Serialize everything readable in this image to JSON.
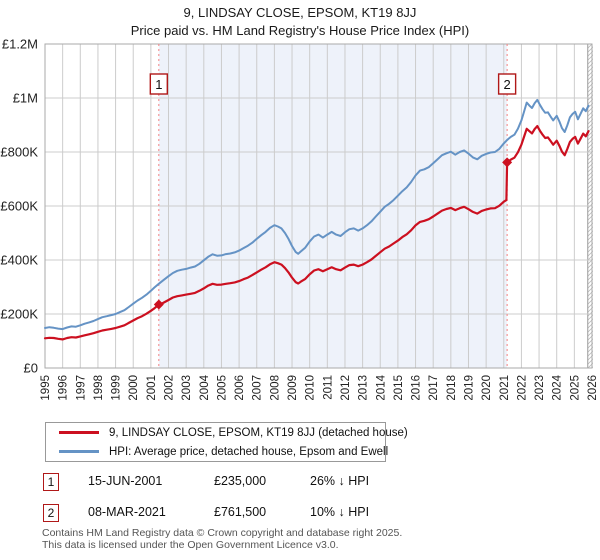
{
  "header": {
    "title": "9, LINDSAY CLOSE, EPSOM, KT19 8JJ",
    "subtitle": "Price paid vs. HM Land Registry's House Price Index (HPI)"
  },
  "colors": {
    "price_line": "#cc1020",
    "hpi_line": "#6593c5",
    "shade": "#eef2fa",
    "marker_dashed": "#f38080",
    "marker_box_border": "#b01818",
    "grid": "#cccccc",
    "plot_border": "#aaaaaa",
    "hatch": "#bbbbbb",
    "axis_text": "#222222"
  },
  "chart_data": {
    "type": "line",
    "title": "9, LINDSAY CLOSE, EPSOM, KT19 8JJ — Price paid vs. HPI",
    "x_axis": {
      "start_year": 1995,
      "end_year": 2026,
      "tick_labels": [
        "1995",
        "1996",
        "1997",
        "1998",
        "1999",
        "2000",
        "2001",
        "2002",
        "2003",
        "2004",
        "2005",
        "2006",
        "2007",
        "2008",
        "2009",
        "2010",
        "2011",
        "2012",
        "2013",
        "2014",
        "2015",
        "2016",
        "2017",
        "2018",
        "2019",
        "2020",
        "2021",
        "2022",
        "2023",
        "2024",
        "2025",
        "2026"
      ]
    },
    "y_axis": {
      "min": 0,
      "max": 1200000,
      "tick_values_k": [
        0,
        200,
        400,
        600,
        800,
        1000,
        1200
      ],
      "tick_labels": [
        "£0",
        "£200K",
        "£400K",
        "£600K",
        "£800K",
        "£1M",
        "£1.2M"
      ]
    },
    "shaded_region": {
      "from_year": 2001.45,
      "to_year": 2021.19
    },
    "hatch_region": {
      "from_year": 2025.76,
      "to_year": 2026.35
    },
    "legend_position": "bottom",
    "grid": true,
    "series": [
      {
        "name": "price_paid_indexed",
        "color_key": "price_line",
        "width": 2.2,
        "points": [
          [
            1995.0,
            110
          ],
          [
            1995.25,
            112
          ],
          [
            1995.5,
            111
          ],
          [
            1995.75,
            108
          ],
          [
            1996.0,
            106
          ],
          [
            1996.25,
            111
          ],
          [
            1996.5,
            114
          ],
          [
            1996.75,
            113
          ],
          [
            1997.0,
            117
          ],
          [
            1997.25,
            121
          ],
          [
            1997.5,
            125
          ],
          [
            1997.75,
            129
          ],
          [
            1998.0,
            134
          ],
          [
            1998.25,
            139
          ],
          [
            1998.5,
            142
          ],
          [
            1998.75,
            145
          ],
          [
            1999.0,
            148
          ],
          [
            1999.25,
            153
          ],
          [
            1999.5,
            158
          ],
          [
            1999.75,
            167
          ],
          [
            2000.0,
            176
          ],
          [
            2000.25,
            185
          ],
          [
            2000.5,
            192
          ],
          [
            2000.75,
            201
          ],
          [
            2001.0,
            212
          ],
          [
            2001.2,
            221
          ],
          [
            2001.45,
            235
          ],
          [
            2001.7,
            241
          ],
          [
            2002.0,
            252
          ],
          [
            2002.25,
            261
          ],
          [
            2002.5,
            266
          ],
          [
            2002.75,
            269
          ],
          [
            2003.0,
            272
          ],
          [
            2003.25,
            275
          ],
          [
            2003.5,
            278
          ],
          [
            2003.75,
            286
          ],
          [
            2004.0,
            295
          ],
          [
            2004.25,
            305
          ],
          [
            2004.5,
            312
          ],
          [
            2004.75,
            308
          ],
          [
            2005.0,
            309
          ],
          [
            2005.25,
            312
          ],
          [
            2005.5,
            314
          ],
          [
            2005.75,
            317
          ],
          [
            2006.0,
            322
          ],
          [
            2006.25,
            329
          ],
          [
            2006.5,
            335
          ],
          [
            2006.75,
            344
          ],
          [
            2007.0,
            354
          ],
          [
            2007.25,
            364
          ],
          [
            2007.5,
            373
          ],
          [
            2007.75,
            384
          ],
          [
            2008.0,
            392
          ],
          [
            2008.2,
            388
          ],
          [
            2008.4,
            383
          ],
          [
            2008.6,
            370
          ],
          [
            2008.8,
            354
          ],
          [
            2009.0,
            335
          ],
          [
            2009.2,
            318
          ],
          [
            2009.35,
            313
          ],
          [
            2009.5,
            320
          ],
          [
            2009.75,
            330
          ],
          [
            2010.0,
            347
          ],
          [
            2010.25,
            361
          ],
          [
            2010.5,
            366
          ],
          [
            2010.75,
            358
          ],
          [
            2011.0,
            366
          ],
          [
            2011.25,
            373
          ],
          [
            2011.5,
            366
          ],
          [
            2011.75,
            362
          ],
          [
            2012.0,
            372
          ],
          [
            2012.25,
            381
          ],
          [
            2012.5,
            383
          ],
          [
            2012.75,
            377
          ],
          [
            2013.0,
            383
          ],
          [
            2013.25,
            392
          ],
          [
            2013.5,
            402
          ],
          [
            2013.75,
            415
          ],
          [
            2014.0,
            429
          ],
          [
            2014.25,
            442
          ],
          [
            2014.5,
            450
          ],
          [
            2014.75,
            461
          ],
          [
            2015.0,
            472
          ],
          [
            2015.25,
            485
          ],
          [
            2015.5,
            495
          ],
          [
            2015.75,
            510
          ],
          [
            2016.0,
            528
          ],
          [
            2016.25,
            541
          ],
          [
            2016.5,
            545
          ],
          [
            2016.75,
            551
          ],
          [
            2017.0,
            561
          ],
          [
            2017.25,
            572
          ],
          [
            2017.5,
            583
          ],
          [
            2017.75,
            589
          ],
          [
            2018.0,
            593
          ],
          [
            2018.25,
            585
          ],
          [
            2018.5,
            592
          ],
          [
            2018.75,
            597
          ],
          [
            2019.0,
            588
          ],
          [
            2019.25,
            578
          ],
          [
            2019.5,
            572
          ],
          [
            2019.75,
            582
          ],
          [
            2020.0,
            587
          ],
          [
            2020.25,
            591
          ],
          [
            2020.5,
            592
          ],
          [
            2020.75,
            601
          ],
          [
            2021.0,
            616
          ],
          [
            2021.15,
            622
          ],
          [
            2021.19,
            761.5
          ],
          [
            2021.4,
            772
          ],
          [
            2021.6,
            779
          ],
          [
            2021.8,
            799
          ],
          [
            2022.0,
            827
          ],
          [
            2022.15,
            857
          ],
          [
            2022.3,
            886
          ],
          [
            2022.45,
            877
          ],
          [
            2022.6,
            869
          ],
          [
            2022.75,
            885
          ],
          [
            2022.9,
            896
          ],
          [
            2023.05,
            879
          ],
          [
            2023.2,
            864
          ],
          [
            2023.35,
            852
          ],
          [
            2023.5,
            854
          ],
          [
            2023.65,
            841
          ],
          [
            2023.8,
            827
          ],
          [
            2024.0,
            842
          ],
          [
            2024.15,
            823
          ],
          [
            2024.3,
            801
          ],
          [
            2024.45,
            788
          ],
          [
            2024.6,
            811
          ],
          [
            2024.75,
            837
          ],
          [
            2024.9,
            849
          ],
          [
            2025.05,
            856
          ],
          [
            2025.2,
            831
          ],
          [
            2025.35,
            849
          ],
          [
            2025.5,
            868
          ],
          [
            2025.65,
            858
          ],
          [
            2025.8,
            877
          ]
        ]
      },
      {
        "name": "hpi_average",
        "color_key": "hpi_line",
        "width": 2,
        "points": [
          [
            1995.0,
            148
          ],
          [
            1995.25,
            151
          ],
          [
            1995.5,
            149
          ],
          [
            1995.75,
            146
          ],
          [
            1996.0,
            144
          ],
          [
            1996.25,
            150
          ],
          [
            1996.5,
            154
          ],
          [
            1996.75,
            153
          ],
          [
            1997.0,
            158
          ],
          [
            1997.25,
            164
          ],
          [
            1997.5,
            169
          ],
          [
            1997.75,
            174
          ],
          [
            1998.0,
            181
          ],
          [
            1998.25,
            188
          ],
          [
            1998.5,
            192
          ],
          [
            1998.75,
            196
          ],
          [
            1999.0,
            200
          ],
          [
            1999.25,
            207
          ],
          [
            1999.5,
            214
          ],
          [
            1999.75,
            226
          ],
          [
            2000.0,
            238
          ],
          [
            2000.25,
            250
          ],
          [
            2000.5,
            260
          ],
          [
            2000.75,
            272
          ],
          [
            2001.0,
            286
          ],
          [
            2001.2,
            298
          ],
          [
            2001.45,
            312
          ],
          [
            2001.7,
            325
          ],
          [
            2002.0,
            340
          ],
          [
            2002.25,
            352
          ],
          [
            2002.5,
            360
          ],
          [
            2002.75,
            364
          ],
          [
            2003.0,
            367
          ],
          [
            2003.25,
            372
          ],
          [
            2003.5,
            376
          ],
          [
            2003.75,
            386
          ],
          [
            2004.0,
            399
          ],
          [
            2004.25,
            412
          ],
          [
            2004.5,
            421
          ],
          [
            2004.75,
            416
          ],
          [
            2005.0,
            417
          ],
          [
            2005.25,
            422
          ],
          [
            2005.5,
            424
          ],
          [
            2005.75,
            428
          ],
          [
            2006.0,
            435
          ],
          [
            2006.25,
            444
          ],
          [
            2006.5,
            453
          ],
          [
            2006.75,
            464
          ],
          [
            2007.0,
            478
          ],
          [
            2007.25,
            492
          ],
          [
            2007.5,
            504
          ],
          [
            2007.75,
            519
          ],
          [
            2008.0,
            529
          ],
          [
            2008.2,
            524
          ],
          [
            2008.4,
            517
          ],
          [
            2008.6,
            500
          ],
          [
            2008.8,
            478
          ],
          [
            2009.0,
            452
          ],
          [
            2009.2,
            430
          ],
          [
            2009.35,
            423
          ],
          [
            2009.5,
            432
          ],
          [
            2009.75,
            446
          ],
          [
            2010.0,
            469
          ],
          [
            2010.25,
            487
          ],
          [
            2010.5,
            494
          ],
          [
            2010.75,
            483
          ],
          [
            2011.0,
            494
          ],
          [
            2011.25,
            504
          ],
          [
            2011.5,
            494
          ],
          [
            2011.75,
            489
          ],
          [
            2012.0,
            503
          ],
          [
            2012.25,
            514
          ],
          [
            2012.5,
            517
          ],
          [
            2012.75,
            509
          ],
          [
            2013.0,
            517
          ],
          [
            2013.25,
            529
          ],
          [
            2013.5,
            543
          ],
          [
            2013.75,
            561
          ],
          [
            2014.0,
            579
          ],
          [
            2014.25,
            597
          ],
          [
            2014.5,
            608
          ],
          [
            2014.75,
            622
          ],
          [
            2015.0,
            638
          ],
          [
            2015.25,
            655
          ],
          [
            2015.5,
            669
          ],
          [
            2015.75,
            689
          ],
          [
            2016.0,
            713
          ],
          [
            2016.25,
            731
          ],
          [
            2016.5,
            736
          ],
          [
            2016.75,
            744
          ],
          [
            2017.0,
            758
          ],
          [
            2017.25,
            773
          ],
          [
            2017.5,
            788
          ],
          [
            2017.75,
            795
          ],
          [
            2018.0,
            801
          ],
          [
            2018.25,
            790
          ],
          [
            2018.5,
            800
          ],
          [
            2018.75,
            806
          ],
          [
            2019.0,
            794
          ],
          [
            2019.25,
            780
          ],
          [
            2019.5,
            773
          ],
          [
            2019.75,
            786
          ],
          [
            2020.0,
            793
          ],
          [
            2020.25,
            798
          ],
          [
            2020.5,
            800
          ],
          [
            2020.75,
            812
          ],
          [
            2021.0,
            832
          ],
          [
            2021.2,
            845
          ],
          [
            2021.4,
            856
          ],
          [
            2021.6,
            864
          ],
          [
            2021.8,
            886
          ],
          [
            2022.0,
            917
          ],
          [
            2022.15,
            950
          ],
          [
            2022.3,
            983
          ],
          [
            2022.45,
            972
          ],
          [
            2022.6,
            963
          ],
          [
            2022.75,
            981
          ],
          [
            2022.9,
            993
          ],
          [
            2023.05,
            975
          ],
          [
            2023.2,
            958
          ],
          [
            2023.35,
            945
          ],
          [
            2023.5,
            947
          ],
          [
            2023.65,
            932
          ],
          [
            2023.8,
            917
          ],
          [
            2024.0,
            934
          ],
          [
            2024.15,
            913
          ],
          [
            2024.3,
            888
          ],
          [
            2024.45,
            874
          ],
          [
            2024.6,
            899
          ],
          [
            2024.75,
            928
          ],
          [
            2024.9,
            941
          ],
          [
            2025.05,
            949
          ],
          [
            2025.2,
            921
          ],
          [
            2025.35,
            941
          ],
          [
            2025.5,
            962
          ],
          [
            2025.65,
            951
          ],
          [
            2025.8,
            972
          ]
        ]
      }
    ],
    "markers": [
      {
        "label": "1",
        "year": 2001.45,
        "value_k": 235
      },
      {
        "label": "2",
        "year": 2021.19,
        "value_k": 761.5
      }
    ]
  },
  "legend": {
    "items": [
      {
        "label": "9, LINDSAY CLOSE, EPSOM, KT19 8JJ (detached house)",
        "color_key": "price_line"
      },
      {
        "label": "HPI: Average price, detached house, Epsom and Ewell",
        "color_key": "hpi_line"
      }
    ]
  },
  "transactions": [
    {
      "n": "1",
      "date": "15-JUN-2001",
      "price": "£235,000",
      "vs_hpi": "26% ↓ HPI"
    },
    {
      "n": "2",
      "date": "08-MAR-2021",
      "price": "£761,500",
      "vs_hpi": "10% ↓ HPI"
    }
  ],
  "footer": {
    "line1": "Contains HM Land Registry data © Crown copyright and database right 2025.",
    "line2": "This data is licensed under the Open Government Licence v3.0."
  }
}
